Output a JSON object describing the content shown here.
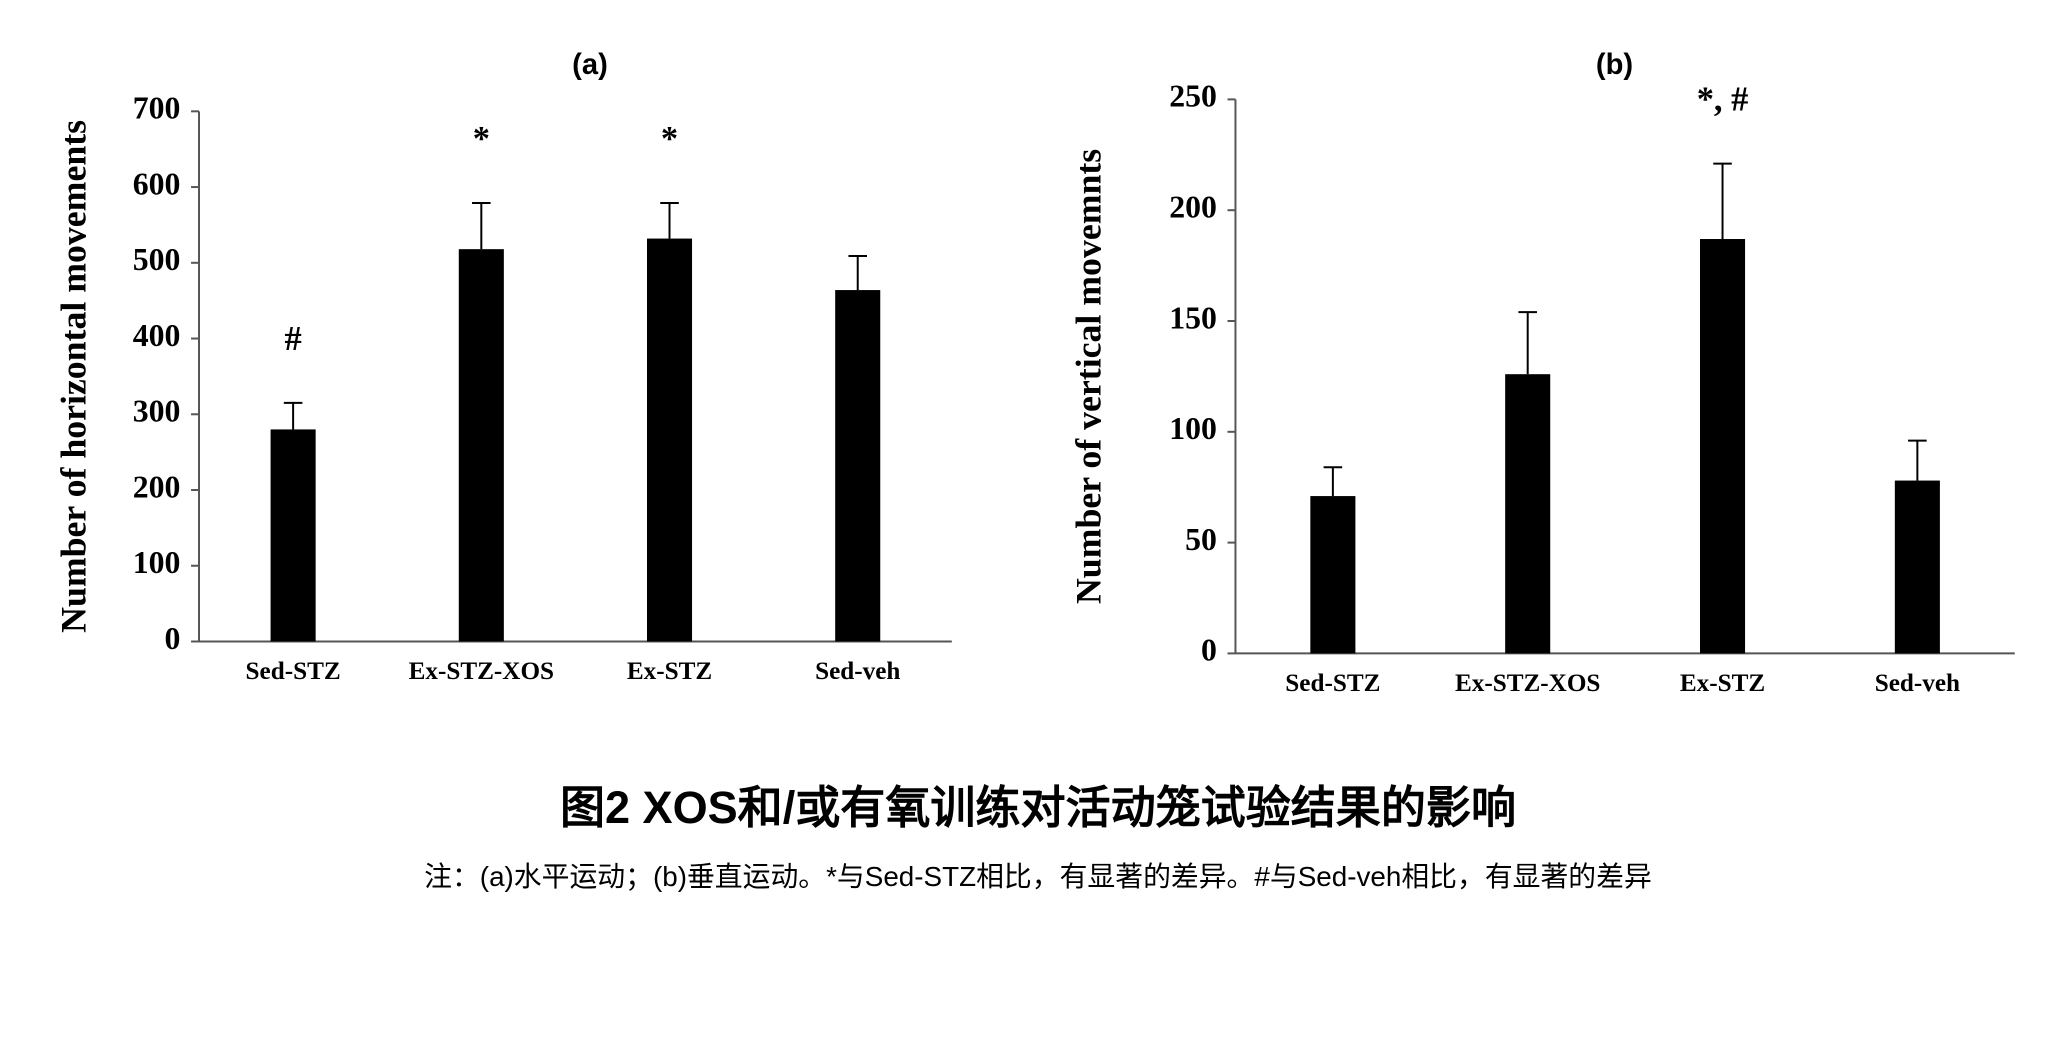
{
  "chart_data": [
    {
      "type": "bar",
      "title": "(a)",
      "y_label": "Number of horizontal movements",
      "categories": [
        "Sed-STZ",
        "Ex-STZ-XOS",
        "Ex-STZ",
        "Sed-veh"
      ],
      "values": [
        280,
        518,
        532,
        464
      ],
      "errors": [
        35,
        61,
        47,
        45
      ],
      "annotations": [
        "#",
        "*",
        "*",
        null
      ],
      "color": "#000000",
      "ylim": [
        0,
        700
      ],
      "yticks": [
        0,
        100,
        200,
        300,
        400,
        500,
        600,
        700
      ],
      "grid": false
    },
    {
      "type": "bar",
      "title": "(b)",
      "y_label": "Number of vertical movemnts",
      "categories": [
        "Sed-STZ",
        "Ex-STZ-XOS",
        "Ex-STZ",
        "Sed-veh"
      ],
      "values": [
        71,
        126,
        187,
        78
      ],
      "errors": [
        13,
        28,
        34,
        18
      ],
      "annotations": [
        null,
        null,
        "*, #",
        null
      ],
      "color": "#000000",
      "ylim": [
        0,
        250
      ],
      "yticks": [
        0,
        50,
        100,
        150,
        200,
        250
      ],
      "grid": false
    }
  ],
  "caption": {
    "title": "图2 XOS和/或有氧训练对活动笼试验结果的影响",
    "note": "注：(a)水平运动；(b)垂直运动。*与Sed-STZ相比，有显著的差异。#与Sed-veh相比，有显著的差异"
  }
}
